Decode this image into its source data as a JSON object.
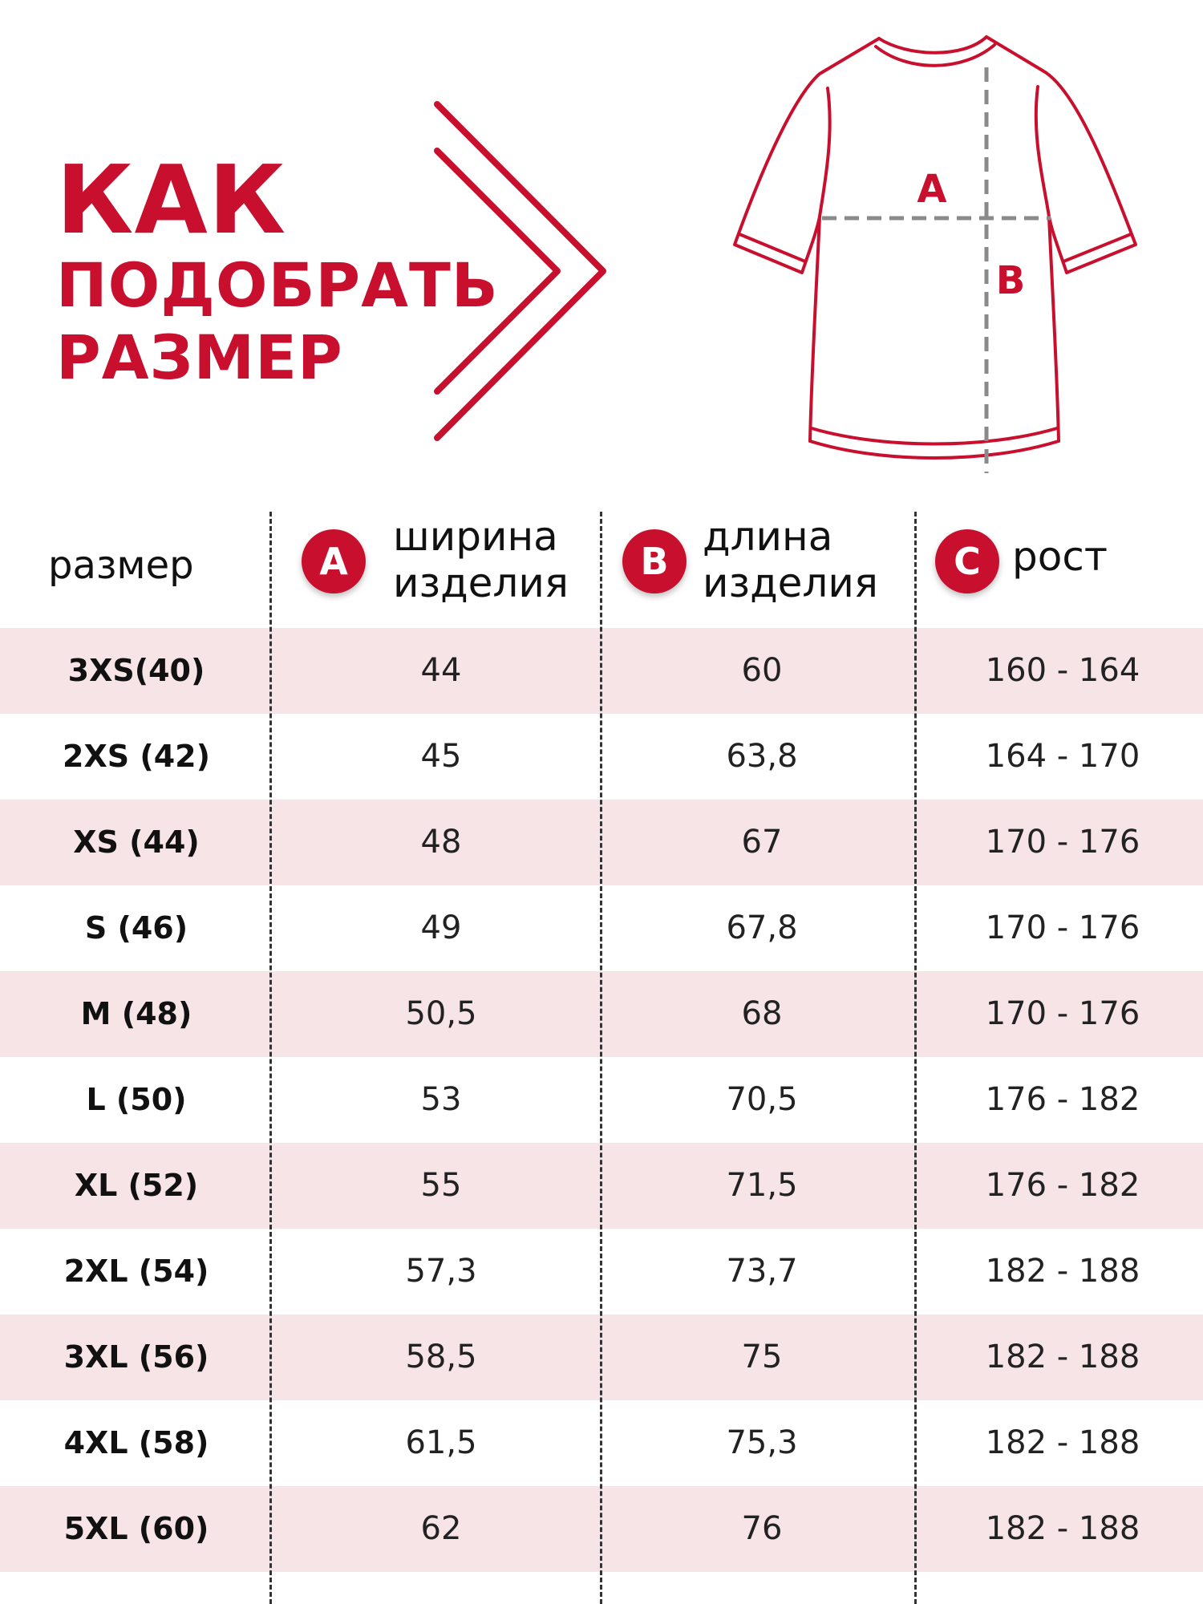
{
  "title": {
    "line1": "КАК",
    "line2": "ПОДОБРАТЬ",
    "line3": "РАЗМЕР"
  },
  "diagram": {
    "label_a": "A",
    "label_b": "B"
  },
  "headers": {
    "size": "размер",
    "a_badge": "A",
    "a_line1": "ширина",
    "a_line2": "изделия",
    "b_badge": "B",
    "b_line1": "длина",
    "b_line2": "изделия",
    "c_badge": "C",
    "c_line1": "рост"
  },
  "colors": {
    "accent": "#c8102e",
    "row_shade": "#f6e4e6",
    "dashed_measure": "#8a8a8a"
  },
  "rows": [
    {
      "size": "3XS(40)",
      "a": "44",
      "b": "60",
      "c": "160 - 164"
    },
    {
      "size": "2XS (42)",
      "a": "45",
      "b": "63,8",
      "c": "164 - 170"
    },
    {
      "size": "XS (44)",
      "a": "48",
      "b": "67",
      "c": "170 - 176"
    },
    {
      "size": "S (46)",
      "a": "49",
      "b": "67,8",
      "c": "170 - 176"
    },
    {
      "size": "M (48)",
      "a": "50,5",
      "b": "68",
      "c": "170 - 176"
    },
    {
      "size": "L (50)",
      "a": "53",
      "b": "70,5",
      "c": "176 - 182"
    },
    {
      "size": "XL (52)",
      "a": "55",
      "b": "71,5",
      "c": "176 - 182"
    },
    {
      "size": "2XL (54)",
      "a": "57,3",
      "b": "73,7",
      "c": "182 - 188"
    },
    {
      "size": "3XL (56)",
      "a": "58,5",
      "b": "75",
      "c": "182 - 188"
    },
    {
      "size": "4XL (58)",
      "a": "61,5",
      "b": "75,3",
      "c": "182 - 188"
    },
    {
      "size": "5XL (60)",
      "a": "62",
      "b": "76",
      "c": "182 - 188"
    }
  ]
}
